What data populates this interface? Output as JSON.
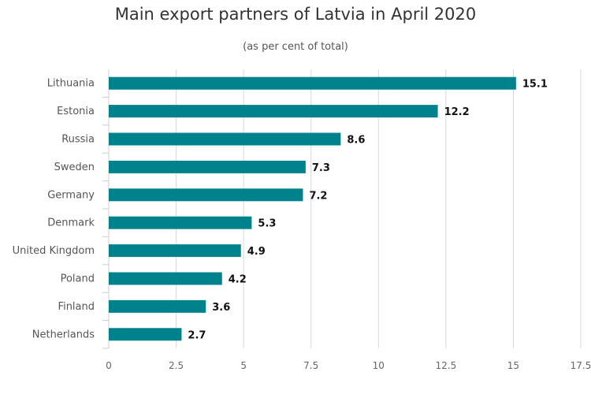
{
  "chart_data": {
    "type": "bar",
    "orientation": "horizontal",
    "title": "Main export partners of Latvia in April 2020",
    "subtitle": "(as per cent of total)",
    "categories": [
      "Lithuania",
      "Estonia",
      "Russia",
      "Sweden",
      "Germany",
      "Denmark",
      "United Kingdom",
      "Poland",
      "Finland",
      "Netherlands"
    ],
    "values": [
      15.1,
      12.2,
      8.6,
      7.3,
      7.2,
      5.3,
      4.9,
      4.2,
      3.6,
      2.7
    ],
    "value_labels": [
      "15.1",
      "12.2",
      "8.6",
      "7.3",
      "7.2",
      "5.3",
      "4.9",
      "4.2",
      "3.6",
      "2.7"
    ],
    "xlim": [
      0,
      17.5
    ],
    "xticks": [
      0,
      2.5,
      5,
      7.5,
      10,
      12.5,
      15,
      17.5
    ],
    "xtick_labels": [
      "0",
      "2.5",
      "5",
      "7.5",
      "10",
      "12.5",
      "15",
      "17.5"
    ],
    "grid": "vertical",
    "legend": "none",
    "colors": {
      "bar": "#00828C",
      "grid": "#D8D8D8",
      "axis": "#CCCCCC"
    }
  }
}
